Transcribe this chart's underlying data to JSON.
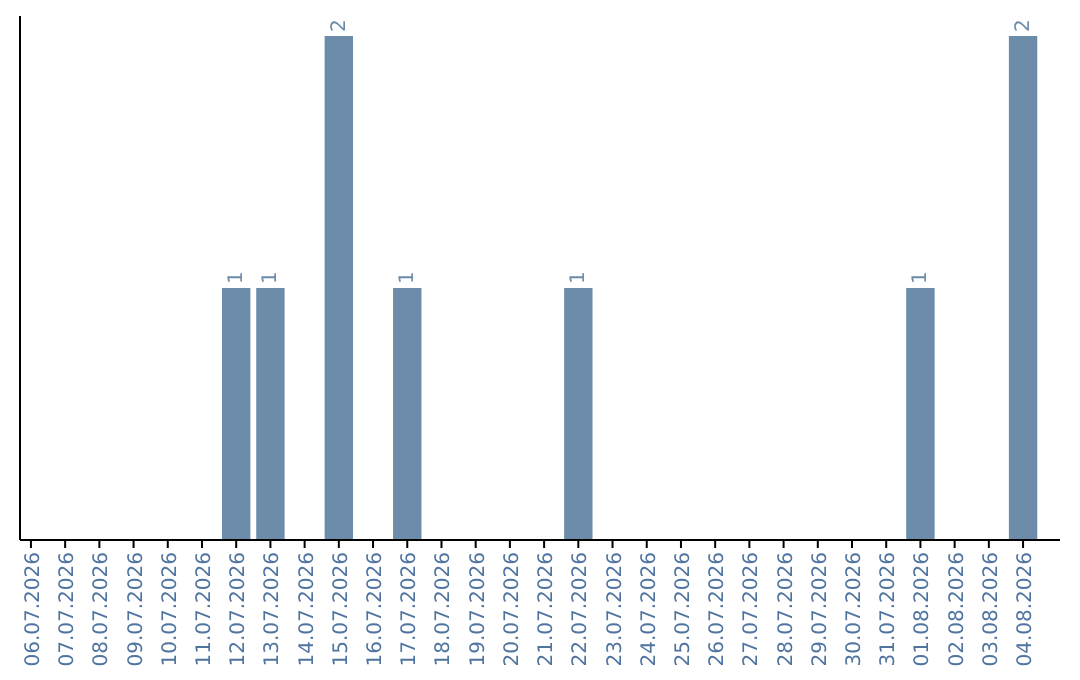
{
  "chart_data": {
    "type": "bar",
    "categories": [
      "06.07.2026",
      "07.07.2026",
      "08.07.2026",
      "09.07.2026",
      "10.07.2026",
      "11.07.2026",
      "12.07.2026",
      "13.07.2026",
      "14.07.2026",
      "15.07.2026",
      "16.07.2026",
      "17.07.2026",
      "18.07.2026",
      "19.07.2026",
      "20.07.2026",
      "21.07.2026",
      "22.07.2026",
      "23.07.2026",
      "24.07.2026",
      "25.07.2026",
      "26.07.2026",
      "27.07.2026",
      "28.07.2026",
      "29.07.2026",
      "30.07.2026",
      "31.07.2026",
      "01.08.2026",
      "02.08.2026",
      "03.08.2026",
      "04.08.2026"
    ],
    "values": [
      0,
      0,
      0,
      0,
      0,
      0,
      1,
      1,
      0,
      2,
      0,
      1,
      0,
      0,
      0,
      0,
      1,
      0,
      0,
      0,
      0,
      0,
      0,
      0,
      0,
      0,
      1,
      0,
      0,
      2
    ],
    "value_labels": [
      null,
      null,
      null,
      null,
      null,
      null,
      "1",
      "1",
      null,
      "2",
      null,
      "1",
      null,
      null,
      null,
      null,
      "1",
      null,
      null,
      null,
      null,
      null,
      null,
      null,
      null,
      null,
      "1",
      null,
      null,
      "2"
    ],
    "color": "#6d8caa",
    "ylim": [
      0,
      2
    ],
    "tick_labels": "x"
  }
}
